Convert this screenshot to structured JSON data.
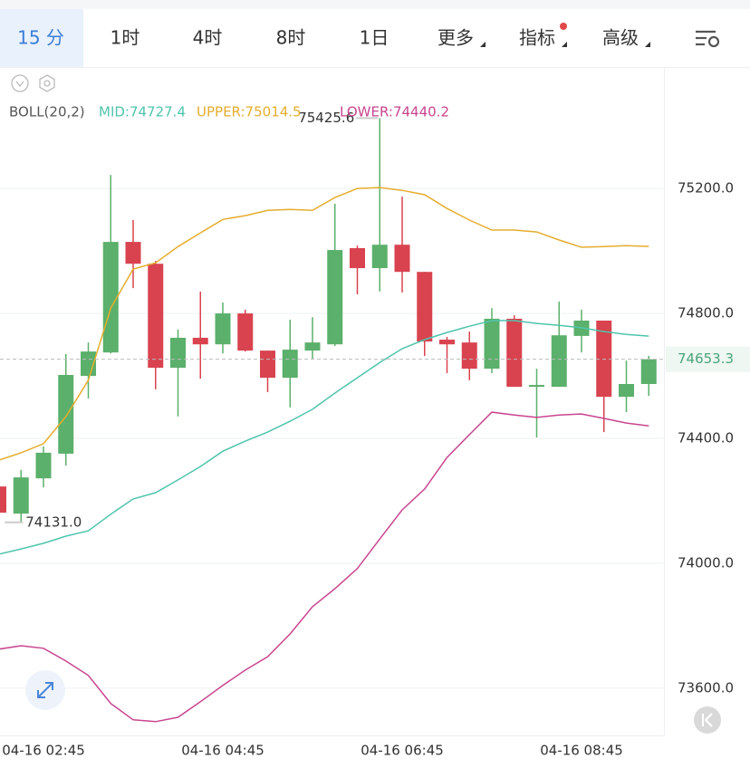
{
  "tabs": [
    "15 分",
    "1时",
    "4时",
    "8时",
    "1日",
    "更多",
    "指标",
    "高级"
  ],
  "active_tab": 0,
  "chart_data": {
    "type": "candlestick",
    "indicator": "BOLL(20,2)",
    "categories": [
      null,
      null,
      "04-16 02:45",
      null,
      null,
      null,
      null,
      null,
      null,
      null,
      "04-16 04:45",
      null,
      null,
      null,
      null,
      null,
      null,
      null,
      "04-16 06:45",
      null,
      null,
      null,
      null,
      null,
      null,
      null,
      "04-16 08:45",
      null,
      null,
      null
    ],
    "open": [
      74246,
      74159,
      74272,
      74351,
      74600,
      74675,
      75029,
      74959,
      74626,
      74722,
      74701,
      74800,
      74681,
      74594,
      74681,
      74701,
      75009,
      74945,
      75020,
      74933,
      74716,
      74707,
      74623,
      74783,
      74565,
      74565,
      74728,
      74777,
      74533,
      74574
    ],
    "high": [
      74250,
      74299,
      74374,
      74670,
      74707,
      75243,
      75099,
      74968,
      74748,
      74870,
      74835,
      74812,
      74681,
      74780,
      74788,
      75151,
      75017,
      75425.6,
      75174,
      74933,
      74725,
      74742,
      74817,
      74794,
      74623,
      74838,
      74812,
      74777,
      74649,
      74664
    ],
    "low": [
      74155,
      74131,
      74243,
      74313,
      74528,
      74672,
      74881,
      74557,
      74470,
      74591,
      74672,
      74678,
      74548,
      74499,
      74655,
      74696,
      74861,
      74870,
      74867,
      74664,
      74609,
      74586,
      74609,
      74565,
      74403,
      74565,
      74675,
      74420,
      74484,
      74536
    ],
    "close": [
      74162,
      74275,
      74354,
      74603,
      74678,
      75029,
      74959,
      74626,
      74722,
      74701,
      74800,
      74681,
      74594,
      74684,
      74707,
      75003,
      74945,
      75020,
      74933,
      74710,
      74701,
      74623,
      74783,
      74565,
      74571,
      74730,
      74777,
      74533,
      74574,
      74653.3
    ],
    "up_color": "#5bb06b",
    "down_color": "#d8434f",
    "max_label": "75425.6",
    "min_label": "74131.0",
    "series": [
      {
        "name": "MID:74727.4",
        "color": "#4fc4ad",
        "values": [
          74029,
          74046,
          74064,
          74087,
          74104,
          74157,
          74206,
          74226,
          74267,
          74310,
          74359,
          74391,
          74420,
          74455,
          74493,
          74545,
          74594,
          74643,
          74687,
          74716,
          74739,
          74759,
          74777,
          74777,
          74768,
          74762,
          74754,
          74742,
          74733,
          74727.4
        ]
      },
      {
        "name": "UPPER:75014.5",
        "color": "#e5ad2e",
        "values": [
          74330,
          74354,
          74383,
          74470,
          74586,
          74817,
          74942,
          74962,
          75014,
          75058,
          75101,
          75113,
          75130,
          75133,
          75130,
          75171,
          75200,
          75203,
          75194,
          75180,
          75136,
          75099,
          75067,
          75067,
          75061,
          75035,
          75012,
          75014,
          75017,
          75014.5
        ]
      },
      {
        "name": "LOWER:74440.2",
        "color": "#c8458f",
        "values": [
          73725,
          73736,
          73728,
          73687,
          73641,
          73551,
          73499,
          73493,
          73507,
          73557,
          73609,
          73658,
          73701,
          73774,
          73861,
          73919,
          73983,
          74078,
          74171,
          74238,
          74339,
          74412,
          74484,
          74475,
          74467,
          74475,
          74478,
          74464,
          74449,
          74440.2
        ]
      }
    ],
    "current_price": 74653.3,
    "ylim": [
      73449,
      75586
    ],
    "yticks": [
      {
        "value": 73600,
        "label": "73600.0"
      },
      {
        "value": 74000,
        "label": "74000.0"
      },
      {
        "value": 74400,
        "label": "74400.0"
      },
      {
        "value": 74800,
        "label": "74800.0"
      },
      {
        "value": 75200,
        "label": "75200.0"
      }
    ],
    "grid": true
  }
}
